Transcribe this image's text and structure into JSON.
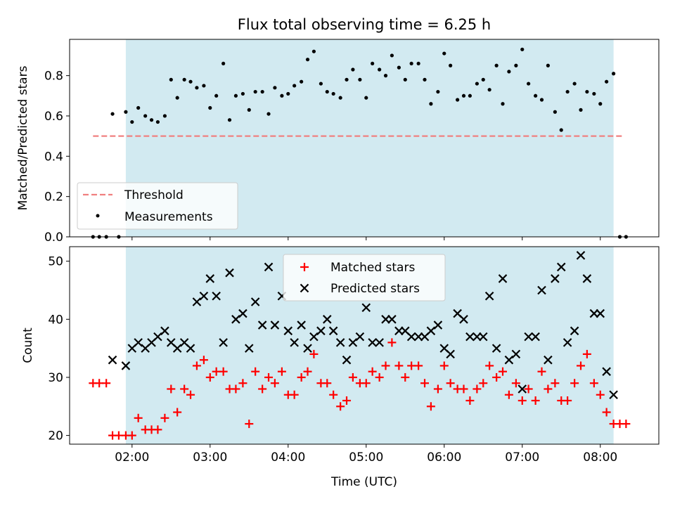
{
  "chart_data": [
    {
      "type": "scatter",
      "title": "Flux total observing time = 6.25 h",
      "xlabel": "",
      "ylabel": "Matched/Predicted stars",
      "xlim": [
        1.2,
        8.75
      ],
      "ylim": [
        0,
        0.98
      ],
      "yticks": [
        0.0,
        0.2,
        0.4,
        0.6,
        0.8
      ],
      "ytick_labels": [
        "0.0",
        "0.2",
        "0.4",
        "0.6",
        "0.8"
      ],
      "shaded_interval": {
        "x_start": 1.92,
        "x_end": 8.17,
        "color": "#add8e6"
      },
      "threshold": {
        "name": "Threshold",
        "value": 0.5,
        "x_range": [
          1.5,
          8.3
        ],
        "style": "dashed",
        "color": "#f08080"
      },
      "legend_position": "lower-left",
      "series": [
        {
          "name": "Measurements",
          "color": "#000000",
          "marker": "dot",
          "x": [
            1.5,
            1.58,
            1.67,
            1.83,
            1.75,
            1.92,
            2.0,
            2.08,
            2.17,
            2.25,
            2.33,
            2.42,
            2.5,
            2.58,
            2.67,
            2.75,
            2.83,
            2.92,
            3.0,
            3.08,
            3.17,
            3.25,
            3.33,
            3.42,
            3.5,
            3.58,
            3.67,
            3.75,
            3.83,
            3.92,
            4.0,
            4.08,
            4.17,
            4.25,
            4.33,
            4.42,
            4.5,
            4.58,
            4.67,
            4.75,
            4.83,
            4.92,
            5.0,
            5.08,
            5.17,
            5.25,
            5.33,
            5.42,
            5.5,
            5.58,
            5.67,
            5.75,
            5.83,
            5.92,
            6.0,
            6.08,
            6.17,
            6.25,
            6.33,
            6.42,
            6.5,
            6.58,
            6.67,
            6.75,
            6.83,
            6.92,
            7.0,
            7.08,
            7.17,
            7.25,
            7.33,
            7.42,
            7.5,
            7.58,
            7.67,
            7.75,
            7.83,
            7.92,
            8.0,
            8.08,
            8.17,
            8.25,
            8.33
          ],
          "y": [
            0.0,
            0.0,
            0.0,
            0.0,
            0.61,
            0.62,
            0.57,
            0.64,
            0.6,
            0.58,
            0.57,
            0.6,
            0.78,
            0.69,
            0.78,
            0.77,
            0.74,
            0.75,
            0.64,
            0.7,
            0.86,
            0.58,
            0.7,
            0.71,
            0.63,
            0.72,
            0.72,
            0.61,
            0.74,
            0.7,
            0.71,
            0.75,
            0.77,
            0.88,
            0.92,
            0.76,
            0.72,
            0.71,
            0.69,
            0.78,
            0.83,
            0.78,
            0.69,
            0.86,
            0.83,
            0.8,
            0.9,
            0.84,
            0.78,
            0.86,
            0.86,
            0.78,
            0.66,
            0.72,
            0.91,
            0.85,
            0.68,
            0.7,
            0.7,
            0.76,
            0.78,
            0.73,
            0.85,
            0.66,
            0.82,
            0.85,
            0.93,
            0.76,
            0.7,
            0.68,
            0.85,
            0.62,
            0.53,
            0.72,
            0.76,
            0.63,
            0.72,
            0.71,
            0.66,
            0.77,
            0.81,
            0.0,
            0.0
          ]
        }
      ],
      "legend": {
        "threshold_label": "Threshold",
        "measurements_label": "Measurements"
      }
    },
    {
      "type": "scatter",
      "title": "",
      "xlabel": "Time (UTC)",
      "ylabel": "Count",
      "xlim": [
        1.2,
        8.75
      ],
      "ylim": [
        18.5,
        52.5
      ],
      "yticks": [
        20,
        30,
        40,
        50
      ],
      "ytick_labels": [
        "20",
        "30",
        "40",
        "50"
      ],
      "xticks": [
        2,
        3,
        4,
        5,
        6,
        7,
        8
      ],
      "xtick_labels": [
        "02:00",
        "03:00",
        "04:00",
        "05:00",
        "06:00",
        "07:00",
        "08:00"
      ],
      "shaded_interval": {
        "x_start": 1.92,
        "x_end": 8.17,
        "color": "#add8e6"
      },
      "legend_position": "upper-center",
      "series": [
        {
          "name": "Matched stars",
          "color": "#ff0000",
          "marker": "plus",
          "x": [
            1.5,
            1.58,
            1.67,
            1.75,
            1.83,
            1.92,
            2.0,
            2.08,
            2.17,
            2.25,
            2.33,
            2.42,
            2.5,
            2.58,
            2.67,
            2.75,
            2.83,
            2.92,
            3.0,
            3.08,
            3.17,
            3.25,
            3.33,
            3.42,
            3.5,
            3.58,
            3.67,
            3.75,
            3.83,
            3.92,
            4.0,
            4.08,
            4.17,
            4.25,
            4.33,
            4.42,
            4.5,
            4.58,
            4.67,
            4.75,
            4.83,
            4.92,
            5.0,
            5.08,
            5.17,
            5.25,
            5.33,
            5.42,
            5.5,
            5.58,
            5.67,
            5.75,
            5.83,
            5.92,
            6.0,
            6.08,
            6.17,
            6.25,
            6.33,
            6.42,
            6.5,
            6.58,
            6.67,
            6.75,
            6.83,
            6.92,
            7.0,
            7.08,
            7.17,
            7.25,
            7.33,
            7.42,
            7.5,
            7.58,
            7.67,
            7.75,
            7.83,
            7.92,
            8.0,
            8.08,
            8.17,
            8.25,
            8.33
          ],
          "y": [
            29,
            29,
            29,
            20,
            20,
            20,
            20,
            23,
            21,
            21,
            21,
            23,
            28,
            24,
            28,
            27,
            32,
            33,
            30,
            31,
            31,
            28,
            28,
            29,
            22,
            31,
            28,
            30,
            29,
            31,
            27,
            27,
            30,
            31,
            34,
            29,
            29,
            27,
            25,
            26,
            30,
            29,
            29,
            31,
            30,
            32,
            36,
            32,
            30,
            32,
            32,
            29,
            25,
            28,
            32,
            29,
            28,
            28,
            26,
            28,
            29,
            32,
            30,
            31,
            27,
            29,
            26,
            28,
            26,
            31,
            28,
            29,
            26,
            26,
            29,
            32,
            34,
            29,
            27,
            24,
            22,
            22,
            22
          ]
        },
        {
          "name": "Predicted stars",
          "color": "#000000",
          "marker": "x",
          "x": [
            1.75,
            1.92,
            2.0,
            2.08,
            2.17,
            2.25,
            2.33,
            2.42,
            2.5,
            2.58,
            2.67,
            2.75,
            2.83,
            2.92,
            3.0,
            3.08,
            3.17,
            3.25,
            3.33,
            3.42,
            3.5,
            3.58,
            3.67,
            3.75,
            3.83,
            3.92,
            4.0,
            4.08,
            4.17,
            4.25,
            4.33,
            4.42,
            4.5,
            4.58,
            4.67,
            4.75,
            4.83,
            4.92,
            5.0,
            5.08,
            5.17,
            5.25,
            5.33,
            5.42,
            5.5,
            5.58,
            5.67,
            5.75,
            5.83,
            5.92,
            6.0,
            6.08,
            6.17,
            6.25,
            6.33,
            6.42,
            6.5,
            6.58,
            6.67,
            6.75,
            6.83,
            6.92,
            7.0,
            7.08,
            7.17,
            7.25,
            7.33,
            7.42,
            7.5,
            7.58,
            7.67,
            7.75,
            7.83,
            7.92,
            8.0,
            8.08,
            8.17
          ],
          "y": [
            33,
            32,
            35,
            36,
            35,
            36,
            37,
            38,
            36,
            35,
            36,
            35,
            43,
            44,
            47,
            44,
            36,
            48,
            40,
            41,
            35,
            43,
            39,
            49,
            39,
            44,
            38,
            36,
            39,
            35,
            37,
            38,
            40,
            38,
            36,
            33,
            36,
            37,
            42,
            36,
            36,
            40,
            40,
            38,
            38,
            37,
            37,
            37,
            38,
            39,
            35,
            34,
            41,
            40,
            37,
            37,
            37,
            44,
            35,
            47,
            33,
            34,
            28,
            37,
            37,
            45,
            33,
            47,
            49,
            36,
            38,
            51,
            47,
            41,
            41,
            31,
            27
          ]
        }
      ],
      "legend": {
        "matched_label": "Matched stars",
        "predicted_label": "Predicted stars"
      }
    }
  ]
}
